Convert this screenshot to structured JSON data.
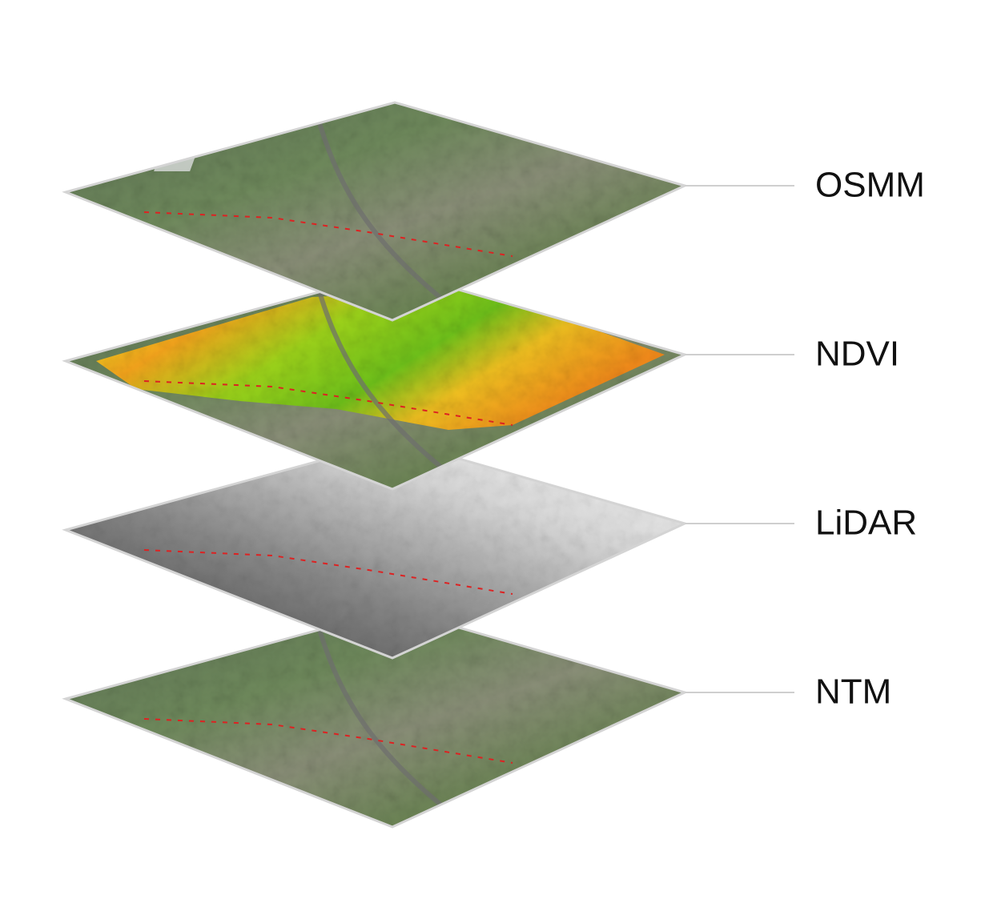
{
  "layers": [
    {
      "label": "OSMM"
    },
    {
      "label": "NDVI"
    },
    {
      "label": "LiDAR"
    },
    {
      "label": "NTM"
    }
  ]
}
